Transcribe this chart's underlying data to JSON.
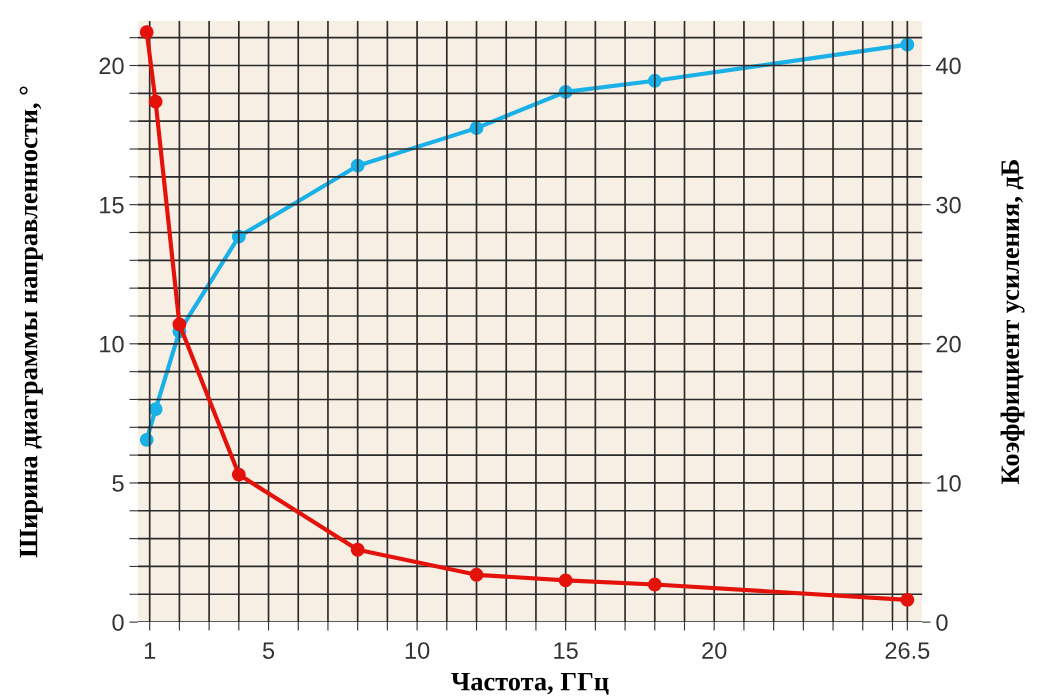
{
  "chart_data": {
    "type": "line",
    "xlabel": "Частота, ГГц",
    "ylabel": "Ширина диаграммы направленности, °",
    "y2label": "Коэффициент усиления, дБ",
    "x": [
      0.9,
      1.2,
      2,
      4,
      8,
      12,
      15,
      18,
      26.5
    ],
    "series": [
      {
        "color": "#e3120b",
        "values": [
          21.2,
          18.7,
          10.7,
          5.3,
          2.6,
          1.7,
          1.5,
          1.35,
          0.8
        ]
      },
      {
        "color": "#1ab0e8",
        "axis": "y2",
        "values": [
          13.1,
          15.3,
          20.9,
          27.7,
          32.8,
          35.5,
          38.1,
          38.9,
          41.5
        ]
      }
    ],
    "xlim": [
      0.6,
      27
    ],
    "xticks": [
      1,
      {
        "value": 2,
        "label": null
      },
      {
        "value": 3,
        "label": null
      },
      {
        "value": 4,
        "label": null
      },
      5,
      {
        "value": 6,
        "label": null
      },
      {
        "value": 7,
        "label": null
      },
      {
        "value": 8,
        "label": null
      },
      {
        "value": 9,
        "label": null
      },
      10,
      {
        "value": 11,
        "label": null
      },
      {
        "value": 12,
        "label": null
      },
      {
        "value": 13,
        "label": null
      },
      {
        "value": 14,
        "label": null
      },
      15,
      {
        "value": 16,
        "label": null
      },
      {
        "value": 17,
        "label": null
      },
      {
        "value": 18,
        "label": null
      },
      {
        "value": 19,
        "label": null
      },
      20,
      {
        "value": 21,
        "label": null
      },
      {
        "value": 22,
        "label": null
      },
      {
        "value": 23,
        "label": null
      },
      {
        "value": 24,
        "label": null
      },
      {
        "value": 25,
        "label": null
      },
      {
        "value": 26,
        "label": null
      },
      26.5
    ],
    "ylim": [
      0,
      21.6
    ],
    "yticks": [
      0,
      {
        "value": 1,
        "label": null
      },
      {
        "value": 2,
        "label": null
      },
      {
        "value": 3,
        "label": null
      },
      {
        "value": 4,
        "label": null
      },
      5,
      {
        "value": 6,
        "label": null
      },
      {
        "value": 7,
        "label": null
      },
      {
        "value": 8,
        "label": null
      },
      {
        "value": 9,
        "label": null
      },
      10,
      {
        "value": 11,
        "label": null
      },
      {
        "value": 12,
        "label": null
      },
      {
        "value": 13,
        "label": null
      },
      {
        "value": 14,
        "label": null
      },
      15,
      {
        "value": 16,
        "label": null
      },
      {
        "value": 17,
        "label": null
      },
      {
        "value": 18,
        "label": null
      },
      {
        "value": 19,
        "label": null
      },
      20,
      {
        "value": 21,
        "label": null
      }
    ],
    "y2lim": [
      0,
      43.2
    ],
    "y2ticks": [
      0,
      10,
      20,
      30,
      40
    ],
    "grid": true,
    "marker": "circle",
    "line_style": "solid"
  }
}
